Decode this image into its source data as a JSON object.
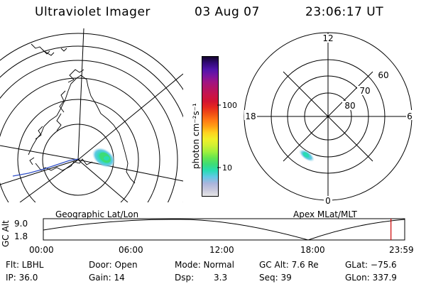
{
  "header": {
    "instrument": "Ultraviolet Imager",
    "date": "03 Aug 07",
    "time": "23:06:17 UT"
  },
  "left_panel": {
    "caption": "Geographic Lat/Lon"
  },
  "right_panel": {
    "caption": "Apex MLat/MLT",
    "mlt_labels": {
      "top": "12",
      "right": "6",
      "bottom": "0",
      "left": "18"
    },
    "lat_labels": [
      "60",
      "70",
      "80"
    ]
  },
  "colorbar": {
    "unit_label": "photon cm⁻²s⁻¹",
    "ticks": [
      "100",
      "10"
    ],
    "colors": [
      "#e6e6e6",
      "#c8c8dc",
      "#aab4dc",
      "#64c8e6",
      "#28dcb4",
      "#3cdc78",
      "#64e650",
      "#a0f03c",
      "#d2f032",
      "#f0f028",
      "#ffd21e",
      "#ffa014",
      "#ff7814",
      "#f05014",
      "#e6281e",
      "#d21432",
      "#c8144b",
      "#b41464",
      "#a01482",
      "#7814a0",
      "#5014aa",
      "#320a78",
      "#14052d"
    ]
  },
  "timeline": {
    "ylabel": "GC Alt",
    "y_ticks": [
      "9.0",
      "1.8"
    ],
    "x_ticks": [
      "00:00",
      "06:00",
      "12:00",
      "18:00",
      "23:59"
    ],
    "current_time_fraction": 0.962,
    "marker_color": "#cc0000"
  },
  "info": {
    "flt": "Flt: LBHL",
    "ip": "IP: 36.0",
    "door": "Door: Open",
    "gain": "Gain: 14",
    "mode": "Mode: Normal",
    "dsp_label": "Dsp:",
    "dsp_value": "3.3",
    "gc_alt": "GC Alt: 7.6 Re",
    "seq": "Seq: 39",
    "glat": "GLat: −75.6",
    "glon": "GLon: 337.9"
  }
}
